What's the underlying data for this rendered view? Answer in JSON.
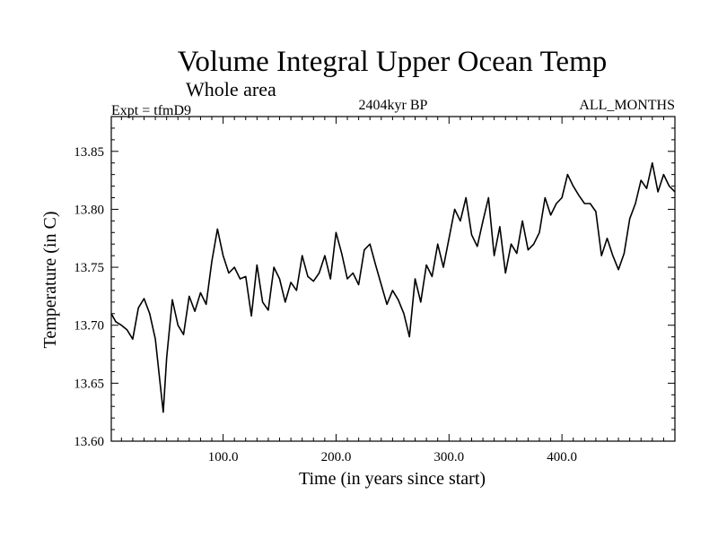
{
  "chart_data": {
    "type": "line",
    "title": "Volume Integral Upper Ocean Temp",
    "subtitle": "Whole area",
    "experiment_label": "Expt = tfmD9",
    "period_label": "2404kyr BP",
    "months_label": "ALL_MONTHS",
    "xlabel": "Time (in years since start)",
    "ylabel": "Temperature (in C)",
    "xlim": [
      1,
      500
    ],
    "ylim": [
      13.6,
      13.88
    ],
    "x_tick_values": [
      100,
      200,
      300,
      400
    ],
    "x_tick_labels": [
      "100.0",
      "200.0",
      "300.0",
      "400.0"
    ],
    "y_tick_values": [
      13.6,
      13.65,
      13.7,
      13.75,
      13.8,
      13.85
    ],
    "y_tick_labels": [
      "13.60",
      "13.65",
      "13.70",
      "13.75",
      "13.80",
      "13.85"
    ],
    "grid": false,
    "series": [
      {
        "name": "Temperature",
        "color": "#000000",
        "x": [
          1,
          5,
          10,
          15,
          20,
          25,
          30,
          35,
          40,
          44,
          47,
          50,
          55,
          60,
          65,
          70,
          75,
          80,
          85,
          90,
          95,
          100,
          105,
          110,
          115,
          120,
          125,
          130,
          135,
          140,
          145,
          150,
          155,
          160,
          165,
          170,
          175,
          180,
          185,
          190,
          195,
          200,
          205,
          210,
          215,
          220,
          225,
          230,
          235,
          240,
          245,
          250,
          255,
          260,
          265,
          270,
          275,
          280,
          285,
          290,
          295,
          300,
          305,
          310,
          315,
          320,
          325,
          330,
          335,
          340,
          345,
          350,
          355,
          360,
          365,
          370,
          375,
          380,
          385,
          390,
          395,
          400,
          405,
          410,
          415,
          420,
          425,
          430,
          435,
          440,
          445,
          450,
          455,
          460,
          465,
          470,
          475,
          480,
          485,
          490,
          495,
          500
        ],
        "y": [
          13.71,
          13.703,
          13.7,
          13.696,
          13.688,
          13.715,
          13.723,
          13.71,
          13.688,
          13.652,
          13.625,
          13.672,
          13.722,
          13.7,
          13.692,
          13.725,
          13.712,
          13.728,
          13.718,
          13.755,
          13.783,
          13.76,
          13.745,
          13.75,
          13.74,
          13.742,
          13.708,
          13.752,
          13.72,
          13.713,
          13.75,
          13.74,
          13.72,
          13.737,
          13.73,
          13.76,
          13.742,
          13.738,
          13.745,
          13.76,
          13.74,
          13.78,
          13.762,
          13.74,
          13.745,
          13.735,
          13.765,
          13.77,
          13.752,
          13.735,
          13.718,
          13.73,
          13.722,
          13.71,
          13.69,
          13.74,
          13.72,
          13.752,
          13.742,
          13.77,
          13.75,
          13.775,
          13.8,
          13.79,
          13.81,
          13.778,
          13.768,
          13.79,
          13.81,
          13.76,
          13.785,
          13.745,
          13.77,
          13.762,
          13.79,
          13.765,
          13.77,
          13.78,
          13.81,
          13.795,
          13.805,
          13.81,
          13.83,
          13.82,
          13.812,
          13.805,
          13.805,
          13.798,
          13.76,
          13.775,
          13.76,
          13.748,
          13.762,
          13.792,
          13.805,
          13.825,
          13.818,
          13.84,
          13.815,
          13.83,
          13.82,
          13.815
        ]
      }
    ]
  }
}
